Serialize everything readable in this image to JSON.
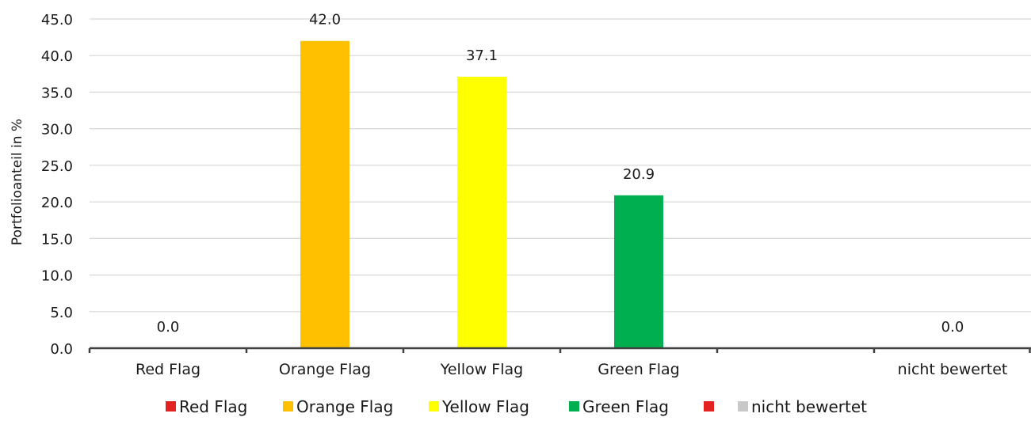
{
  "chart_data": {
    "type": "bar",
    "title": "",
    "xlabel": "",
    "ylabel": "Portfolioanteil in %",
    "ylim": [
      0,
      45
    ],
    "yticks": [
      0,
      5,
      10,
      15,
      20,
      25,
      30,
      35,
      40,
      45
    ],
    "ytick_labels": [
      "0.0",
      "5.0",
      "10.0",
      "15.0",
      "20.0",
      "25.0",
      "30.0",
      "35.0",
      "40.0",
      "45.0"
    ],
    "grid": true,
    "legend_position": "bottom",
    "categories": [
      "Red Flag",
      "Orange Flag",
      "Yellow Flag",
      "Green Flag",
      "",
      "nicht bewertet"
    ],
    "values": [
      0.0,
      42.0,
      37.1,
      20.9,
      null,
      0.0
    ],
    "data_labels": [
      "0.0",
      "42.0",
      "37.1",
      "20.9",
      "",
      "0.0"
    ],
    "colors": [
      "#e32322",
      "#ffc000",
      "#ffff00",
      "#00b050",
      "#e32322",
      "#c8c8c8"
    ],
    "legend": [
      {
        "label": "Red Flag",
        "color": "#e32322"
      },
      {
        "label": "Orange Flag",
        "color": "#ffc000"
      },
      {
        "label": "Yellow Flag",
        "color": "#ffff00"
      },
      {
        "label": "Green Flag",
        "color": "#00b050"
      },
      {
        "label": "",
        "color": "#e32322"
      },
      {
        "label": "nicht bewertet",
        "color": "#c8c8c8"
      }
    ]
  }
}
